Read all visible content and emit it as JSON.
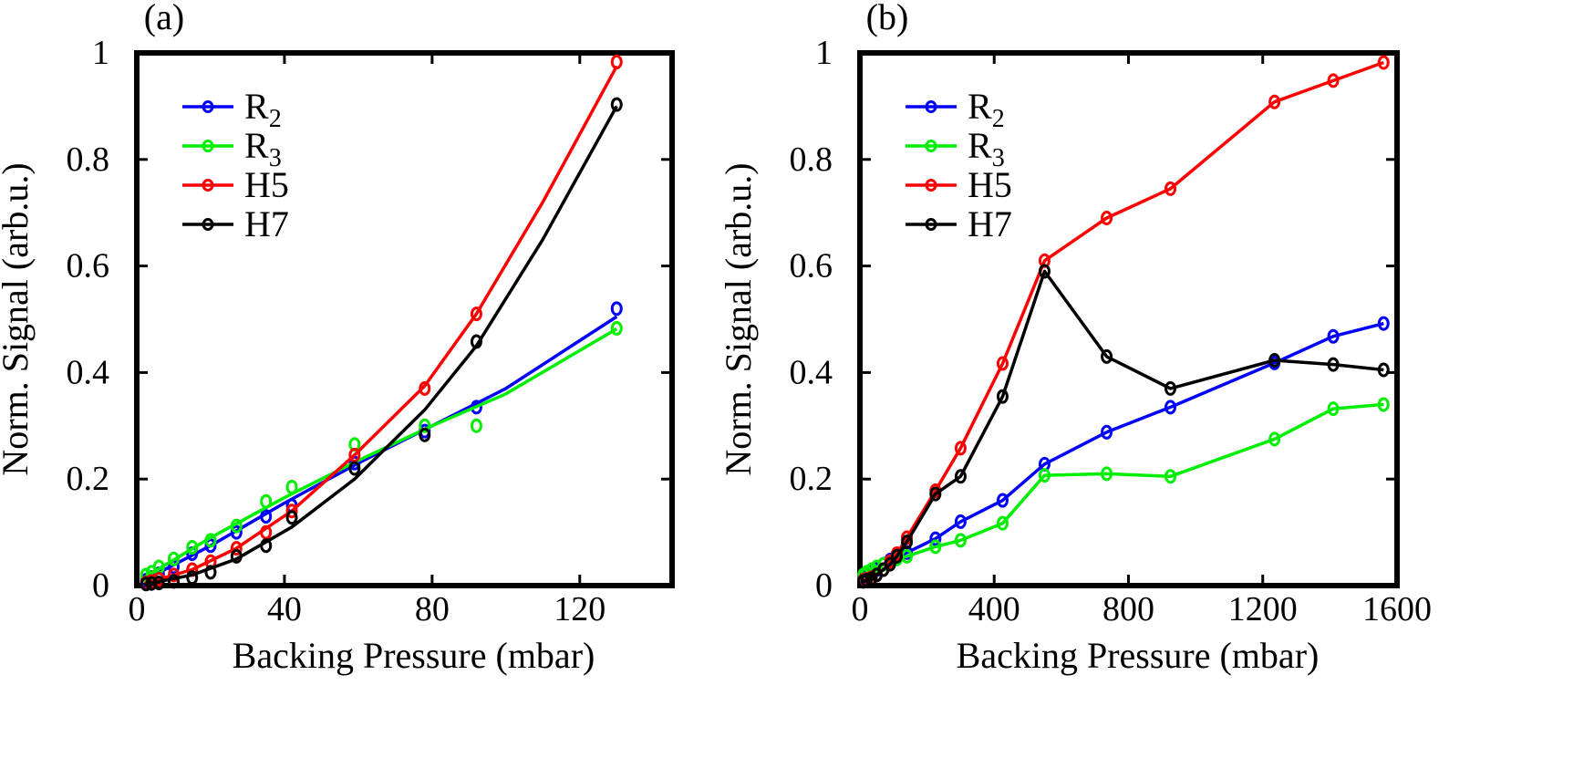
{
  "chart_data": [
    {
      "type": "line",
      "panel_label": "(a)",
      "xlabel": "Backing Pressure (mbar)",
      "ylabel": "Norm. Signal (arb.u.)",
      "xlim": [
        0,
        145
      ],
      "ylim": [
        0,
        1
      ],
      "xticks": [
        {
          "value": 0,
          "label": "0"
        },
        {
          "value": 40,
          "label": "40"
        },
        {
          "value": 80,
          "label": "80"
        },
        {
          "value": 120,
          "label": "120"
        }
      ],
      "yticks": [
        {
          "value": 0,
          "label": "0"
        },
        {
          "value": 0.2,
          "label": "0.2"
        },
        {
          "value": 0.4,
          "label": "0.4"
        },
        {
          "value": 0.6,
          "label": "0.6"
        },
        {
          "value": 0.8,
          "label": "0.8"
        },
        {
          "value": 1,
          "label": "1"
        }
      ],
      "grid": false,
      "legend_position": "top-left",
      "series": [
        {
          "name": "R",
          "name_sub": "2",
          "color": "#0000ff",
          "points": [
            [
              2.5,
              0.01
            ],
            [
              4,
              0.015
            ],
            [
              6,
              0.022
            ],
            [
              10,
              0.035
            ],
            [
              15,
              0.06
            ],
            [
              20,
              0.075
            ],
            [
              27,
              0.1
            ],
            [
              35,
              0.13
            ],
            [
              42,
              0.15
            ],
            [
              59,
              0.23
            ],
            [
              78,
              0.29
            ],
            [
              92,
              0.335
            ],
            [
              130,
              0.52
            ]
          ],
          "fit": [
            [
              2,
              0.01
            ],
            [
              20,
              0.075
            ],
            [
              40,
              0.155
            ],
            [
              60,
              0.23
            ],
            [
              80,
              0.3
            ],
            [
              100,
              0.37
            ],
            [
              130,
              0.505
            ]
          ]
        },
        {
          "name": "R",
          "name_sub": "3",
          "color": "#00ee00",
          "points": [
            [
              2.5,
              0.02
            ],
            [
              4,
              0.025
            ],
            [
              6,
              0.035
            ],
            [
              10,
              0.05
            ],
            [
              15,
              0.072
            ],
            [
              20,
              0.085
            ],
            [
              27,
              0.112
            ],
            [
              35,
              0.158
            ],
            [
              42,
              0.185
            ],
            [
              59,
              0.265
            ],
            [
              78,
              0.3
            ],
            [
              92,
              0.3
            ],
            [
              130,
              0.483
            ]
          ],
          "fit": [
            [
              2,
              0.015
            ],
            [
              20,
              0.09
            ],
            [
              40,
              0.165
            ],
            [
              60,
              0.235
            ],
            [
              80,
              0.3
            ],
            [
              100,
              0.36
            ],
            [
              130,
              0.482
            ]
          ]
        },
        {
          "name": "H5",
          "color": "#ff0000",
          "points": [
            [
              2.5,
              0.005
            ],
            [
              4,
              0.008
            ],
            [
              6,
              0.012
            ],
            [
              10,
              0.02
            ],
            [
              15,
              0.03
            ],
            [
              20,
              0.045
            ],
            [
              27,
              0.07
            ],
            [
              35,
              0.1
            ],
            [
              42,
              0.14
            ],
            [
              59,
              0.245
            ],
            [
              78,
              0.37
            ],
            [
              92,
              0.51
            ],
            [
              130,
              0.983
            ]
          ],
          "fit": [
            [
              2,
              0.004
            ],
            [
              15,
              0.03
            ],
            [
              27,
              0.07
            ],
            [
              42,
              0.14
            ],
            [
              59,
              0.245
            ],
            [
              78,
              0.375
            ],
            [
              92,
              0.51
            ],
            [
              110,
              0.72
            ],
            [
              130,
              0.975
            ]
          ]
        },
        {
          "name": "H7",
          "color": "#000000",
          "points": [
            [
              2.5,
              0.003
            ],
            [
              4,
              0.004
            ],
            [
              6,
              0.005
            ],
            [
              10,
              0.008
            ],
            [
              15,
              0.015
            ],
            [
              20,
              0.025
            ],
            [
              27,
              0.055
            ],
            [
              35,
              0.075
            ],
            [
              42,
              0.128
            ],
            [
              59,
              0.22
            ],
            [
              78,
              0.283
            ],
            [
              92,
              0.458
            ],
            [
              130,
              0.903
            ]
          ],
          "fit": [
            [
              2,
              0.002
            ],
            [
              15,
              0.02
            ],
            [
              27,
              0.05
            ],
            [
              42,
              0.11
            ],
            [
              59,
              0.2
            ],
            [
              78,
              0.33
            ],
            [
              92,
              0.45
            ],
            [
              110,
              0.65
            ],
            [
              130,
              0.9
            ]
          ]
        }
      ]
    },
    {
      "type": "line",
      "panel_label": "(b)",
      "xlabel": "Backing Pressure (mbar)",
      "ylabel": "Norm. Signal (arb.u.)",
      "xlim": [
        0,
        1600
      ],
      "ylim": [
        0,
        1
      ],
      "xticks": [
        {
          "value": 0,
          "label": "0"
        },
        {
          "value": 400,
          "label": "400"
        },
        {
          "value": 800,
          "label": "800"
        },
        {
          "value": 1200,
          "label": "1200"
        },
        {
          "value": 1600,
          "label": "1600"
        }
      ],
      "yticks": [
        {
          "value": 0,
          "label": "0"
        },
        {
          "value": 0.2,
          "label": "0.2"
        },
        {
          "value": 0.4,
          "label": "0.4"
        },
        {
          "value": 0.6,
          "label": "0.6"
        },
        {
          "value": 0.8,
          "label": "0.8"
        },
        {
          "value": 1,
          "label": "1"
        }
      ],
      "grid": false,
      "legend_position": "top-left",
      "series": [
        {
          "name": "R",
          "name_sub": "2",
          "color": "#0000ff",
          "points": [
            [
              10,
              0.015
            ],
            [
              20,
              0.02
            ],
            [
              35,
              0.025
            ],
            [
              50,
              0.03
            ],
            [
              70,
              0.04
            ],
            [
              90,
              0.048
            ],
            [
              110,
              0.052
            ],
            [
              140,
              0.062
            ],
            [
              225,
              0.088
            ],
            [
              300,
              0.12
            ],
            [
              425,
              0.16
            ],
            [
              550,
              0.228
            ],
            [
              735,
              0.288
            ],
            [
              925,
              0.335
            ],
            [
              1235,
              0.418
            ],
            [
              1410,
              0.468
            ],
            [
              1560,
              0.492
            ]
          ]
        },
        {
          "name": "R",
          "name_sub": "3",
          "color": "#00ee00",
          "points": [
            [
              10,
              0.02
            ],
            [
              20,
              0.025
            ],
            [
              35,
              0.03
            ],
            [
              50,
              0.035
            ],
            [
              70,
              0.04
            ],
            [
              90,
              0.045
            ],
            [
              110,
              0.05
            ],
            [
              140,
              0.055
            ],
            [
              225,
              0.073
            ],
            [
              300,
              0.085
            ],
            [
              425,
              0.117
            ],
            [
              550,
              0.207
            ],
            [
              735,
              0.21
            ],
            [
              925,
              0.205
            ],
            [
              1235,
              0.275
            ],
            [
              1410,
              0.332
            ],
            [
              1560,
              0.34
            ]
          ]
        },
        {
          "name": "H5",
          "color": "#ff0000",
          "points": [
            [
              10,
              0.01
            ],
            [
              20,
              0.012
            ],
            [
              35,
              0.015
            ],
            [
              50,
              0.02
            ],
            [
              70,
              0.03
            ],
            [
              90,
              0.045
            ],
            [
              110,
              0.06
            ],
            [
              140,
              0.09
            ],
            [
              225,
              0.178
            ],
            [
              300,
              0.258
            ],
            [
              425,
              0.417
            ],
            [
              550,
              0.61
            ],
            [
              735,
              0.69
            ],
            [
              925,
              0.745
            ],
            [
              1235,
              0.908
            ],
            [
              1410,
              0.948
            ],
            [
              1560,
              0.982
            ]
          ]
        },
        {
          "name": "H7",
          "color": "#000000",
          "points": [
            [
              10,
              0.008
            ],
            [
              20,
              0.01
            ],
            [
              35,
              0.013
            ],
            [
              50,
              0.02
            ],
            [
              70,
              0.03
            ],
            [
              90,
              0.04
            ],
            [
              110,
              0.055
            ],
            [
              140,
              0.082
            ],
            [
              225,
              0.172
            ],
            [
              300,
              0.205
            ],
            [
              425,
              0.355
            ],
            [
              550,
              0.59
            ],
            [
              735,
              0.43
            ],
            [
              925,
              0.37
            ],
            [
              1235,
              0.423
            ],
            [
              1410,
              0.415
            ],
            [
              1560,
              0.405
            ]
          ]
        }
      ]
    }
  ]
}
